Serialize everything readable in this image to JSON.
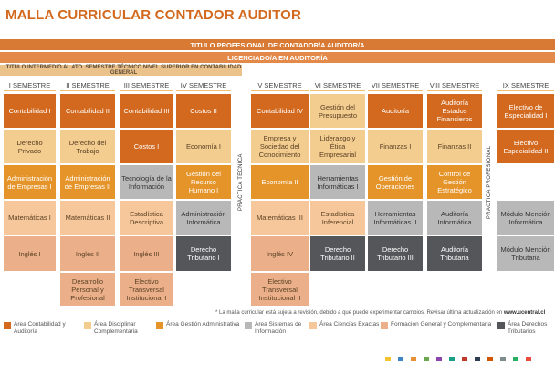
{
  "title": "MALLA CURRICULAR CONTADOR AUDITOR",
  "bands": {
    "titulo_profesional": "TITULO PROFESIONAL DE CONTADOR/A AUDITOR/A",
    "licenciado": "LICENCIADO/A EN AUDITORÍA",
    "titulo_intermedio": "TITULO INTERMEDIO AL 4TO. SEMESTRE TÉCNICO NIVEL SUPERIOR EN CONTABILIDAD GENERAL"
  },
  "semesters": [
    "I SEMESTRE",
    "II SEMESTRE",
    "III SEMESTRE",
    "IV SEMESTRE",
    "V SEMESTRE",
    "VI SEMESTRE",
    "VII SEMESTRE",
    "VIII SEMESTRE",
    "IX SEMESTRE"
  ],
  "practica_tecnica": "PRÁCTICA TÉCNICA",
  "practica_profesional": "PRÁCTICA PROFESIONAL",
  "courses": {
    "s1": [
      "Contabilidad I",
      "Derecho Privado",
      "Administración de Empresas I",
      "Matemáticas I",
      "Inglés I"
    ],
    "s2": [
      "Contabilidad II",
      "Derecho del Trabajo",
      "Administración de Empresas II",
      "Matemáticas II",
      "Inglés II",
      "Desarrollo Personal y Profesional"
    ],
    "s3": [
      "Contabilidad III",
      "Costos I",
      "Tecnología de la Información",
      "Estadística Descriptiva",
      "Inglés III",
      "Electivo Transversal Institucional I"
    ],
    "s4": [
      "Costos II",
      "Economía I",
      "Gestión del Recurso Humano I",
      "Administración Informática",
      "Derecho Tributario I"
    ],
    "s5": [
      "Contabilidad IV",
      "Empresa y Sociedad del Conocimiento",
      "Economía II",
      "Matemáticas III",
      "Inglés IV",
      "Electivo Transversal Institucional II"
    ],
    "s6": [
      "Gestión del Presupuesto",
      "Liderazgo y Ética Empresarial",
      "Herramientas Informáticas I",
      "Estadística Inferencial",
      "Derecho Tributario II"
    ],
    "s7": [
      "Auditoría",
      "Finanzas I",
      "Gestión de Operaciones",
      "Herramientas Informáticas II",
      "Derecho Tributario III"
    ],
    "s8": [
      "Auditoría Estados Financieros",
      "Finanzas II",
      "Control de Gestión Estratégico",
      "Auditoría Informática",
      "Auditoría Tributaria"
    ],
    "s9": [
      "Electivo de Especialidad I",
      "Electivo Especialidad II",
      "Módulo Mención Informática",
      "Módulo Mención Tributaria"
    ]
  },
  "footnote": {
    "text": "* La malla curricular está sujeta a revisión, debido a que puede experimentar cambios. Revisar última actualización en ",
    "link": "www.ucentral.cl"
  },
  "legend": [
    {
      "label": "Área Contabilidad y Auditoría",
      "color": "#d2691e"
    },
    {
      "label": "Área Disciplinar Complementaria",
      "color": "#f3cc8f"
    },
    {
      "label": "Área Gestión Administrativa",
      "color": "#e5942a"
    },
    {
      "label": "Área Sistemas de Información",
      "color": "#b8b8b8"
    },
    {
      "label": "Área Ciencias Exactas",
      "color": "#f6c79a"
    },
    {
      "label": "Formación General y Complementaria",
      "color": "#ebb08a"
    },
    {
      "label": "Área Derechos Tributarios",
      "color": "#55565a"
    }
  ],
  "palette_dots": [
    "#f1c232",
    "#3d85c6",
    "#e69138",
    "#6aa84f",
    "#8e44ad",
    "#16a085",
    "#c0392b",
    "#2c3e50",
    "#d35400",
    "#7f8c8d",
    "#27ae60",
    "#e74c3c"
  ]
}
